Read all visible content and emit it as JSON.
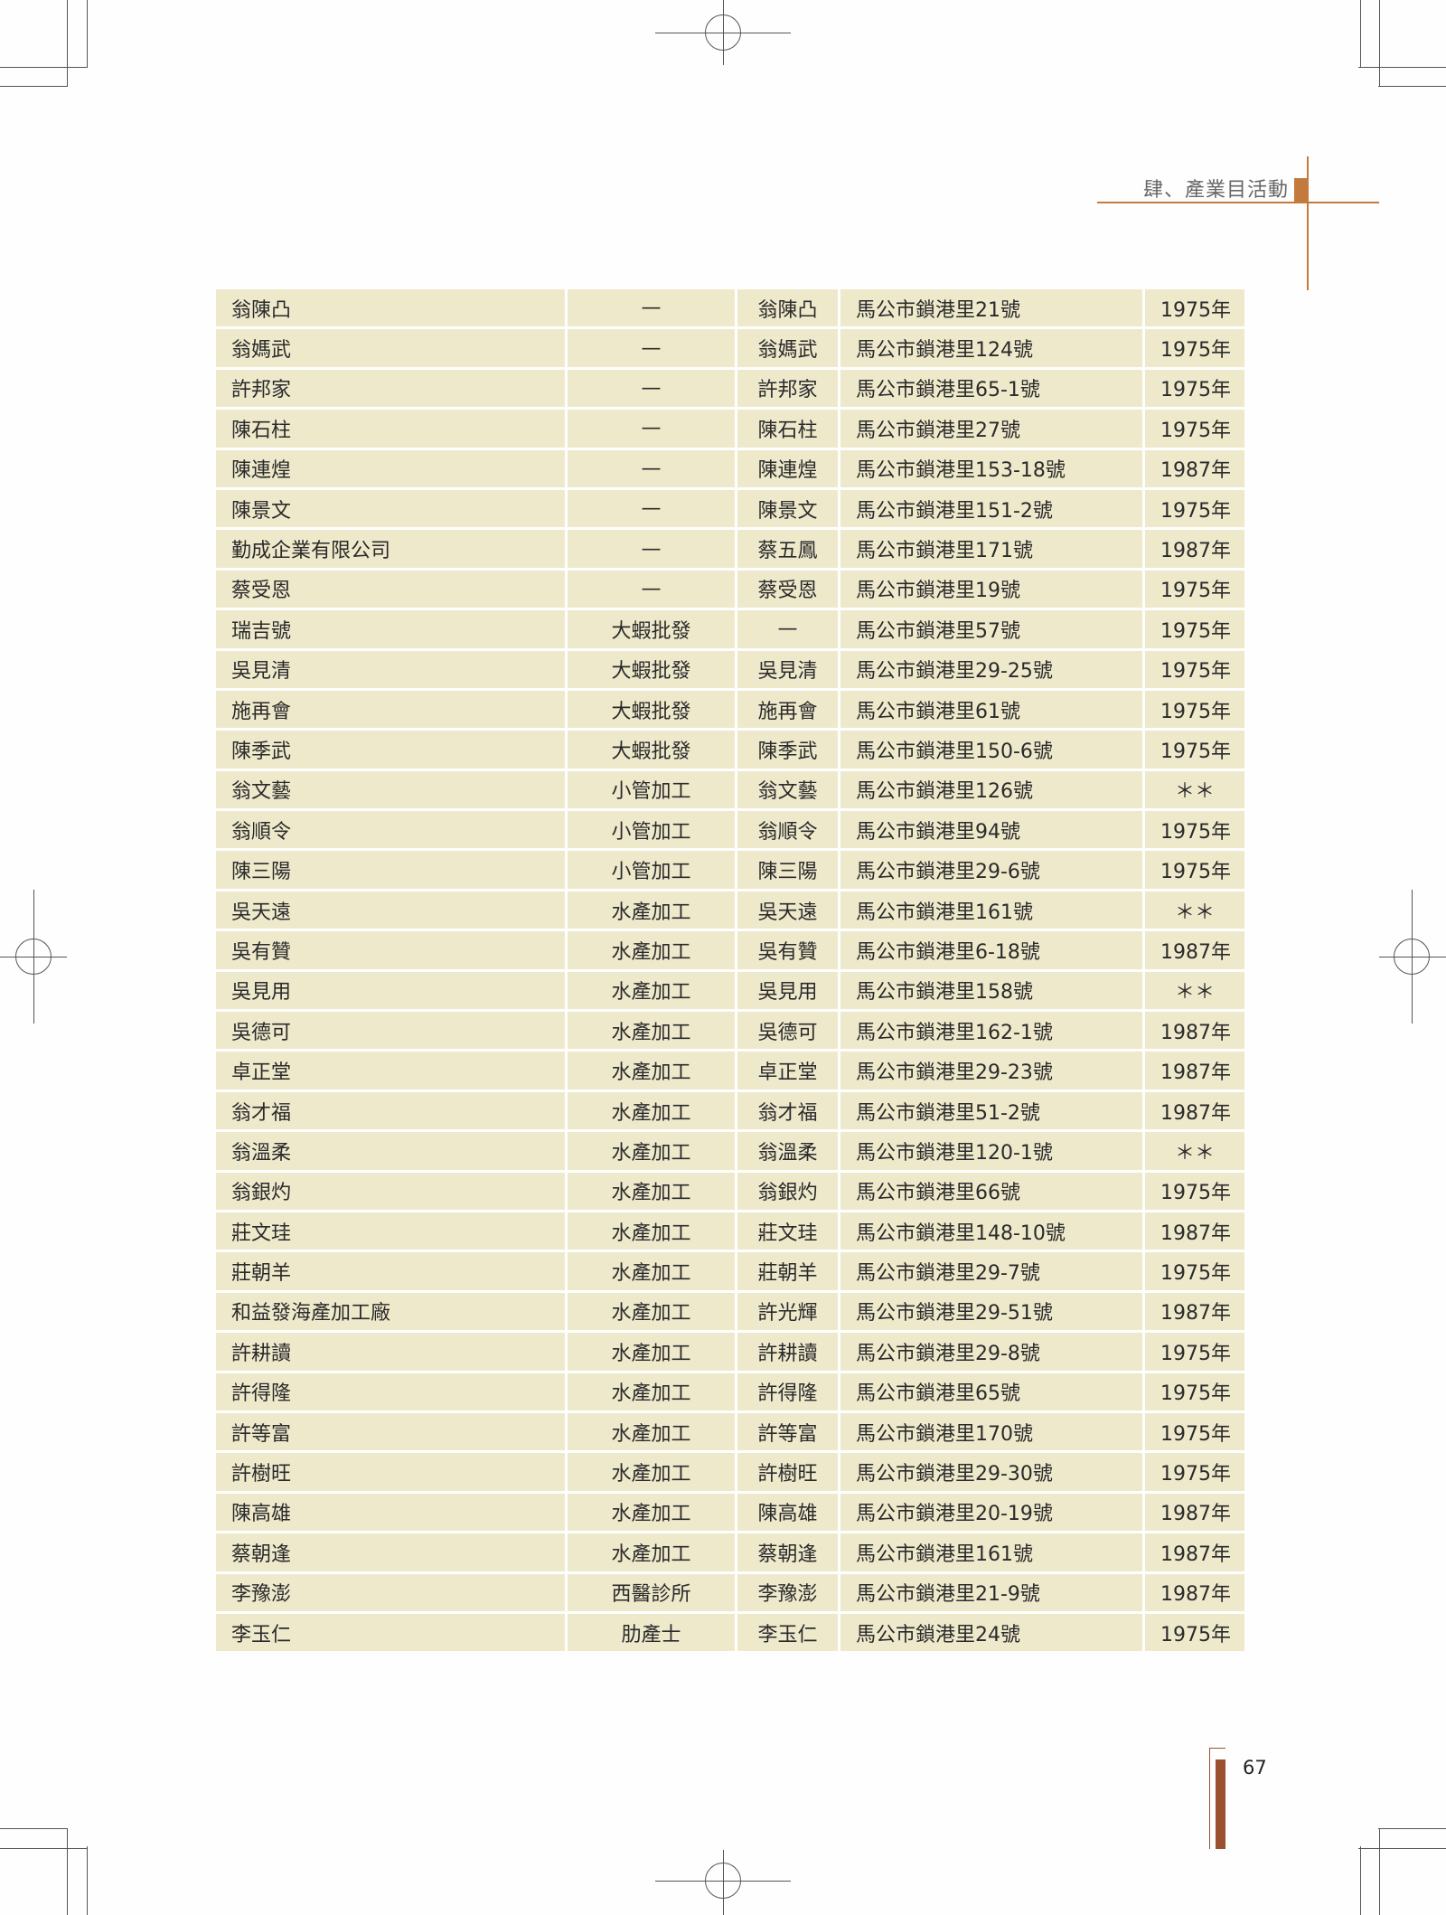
{
  "header": {
    "section_title": "肆、產業目活動"
  },
  "page_number": "67",
  "colors": {
    "cell_background": "#efe9cc",
    "accent": "#c47a3c",
    "page_bar": "#9b5030"
  },
  "rows": [
    [
      "翁陳凸",
      "—",
      "翁陳凸",
      "馬公市鎖港里21號",
      "1975年"
    ],
    [
      "翁媽武",
      "—",
      "翁媽武",
      "馬公市鎖港里124號",
      "1975年"
    ],
    [
      "許邦家",
      "—",
      "許邦家",
      "馬公市鎖港里65-1號",
      "1975年"
    ],
    [
      "陳石柱",
      "—",
      "陳石柱",
      "馬公市鎖港里27號",
      "1975年"
    ],
    [
      "陳連煌",
      "—",
      "陳連煌",
      "馬公市鎖港里153-18號",
      "1987年"
    ],
    [
      "陳景文",
      "—",
      "陳景文",
      "馬公市鎖港里151-2號",
      "1975年"
    ],
    [
      "勤成企業有限公司",
      "—",
      "蔡五鳳",
      "馬公市鎖港里171號",
      "1987年"
    ],
    [
      "蔡受恩",
      "—",
      "蔡受恩",
      "馬公市鎖港里19號",
      "1975年"
    ],
    [
      "瑞吉號",
      "大蝦批發",
      "—",
      "馬公市鎖港里57號",
      "1975年"
    ],
    [
      "吳見清",
      "大蝦批發",
      "吳見清",
      "馬公市鎖港里29-25號",
      "1975年"
    ],
    [
      "施再會",
      "大蝦批發",
      "施再會",
      "馬公市鎖港里61號",
      "1975年"
    ],
    [
      "陳季武",
      "大蝦批發",
      "陳季武",
      "馬公市鎖港里150-6號",
      "1975年"
    ],
    [
      "翁文藝",
      "小管加工",
      "翁文藝",
      "馬公市鎖港里126號",
      "＊＊"
    ],
    [
      "翁順令",
      "小管加工",
      "翁順令",
      "馬公市鎖港里94號",
      "1975年"
    ],
    [
      "陳三陽",
      "小管加工",
      "陳三陽",
      "馬公市鎖港里29-6號",
      "1975年"
    ],
    [
      "吳天遠",
      "水產加工",
      "吳天遠",
      "馬公市鎖港里161號",
      "＊＊"
    ],
    [
      "吳有贊",
      "水產加工",
      "吳有贊",
      "馬公市鎖港里6-18號",
      "1987年"
    ],
    [
      "吳見用",
      "水產加工",
      "吳見用",
      "馬公市鎖港里158號",
      "＊＊"
    ],
    [
      "吳德可",
      "水產加工",
      "吳德可",
      "馬公市鎖港里162-1號",
      "1987年"
    ],
    [
      "卓正堂",
      "水產加工",
      "卓正堂",
      "馬公市鎖港里29-23號",
      "1987年"
    ],
    [
      "翁才福",
      "水產加工",
      "翁才福",
      "馬公市鎖港里51-2號",
      "1987年"
    ],
    [
      "翁溫柔",
      "水產加工",
      "翁溫柔",
      "馬公市鎖港里120-1號",
      "＊＊"
    ],
    [
      "翁銀灼",
      "水產加工",
      "翁銀灼",
      "馬公市鎖港里66號",
      "1975年"
    ],
    [
      "莊文珪",
      "水產加工",
      "莊文珪",
      "馬公市鎖港里148-10號",
      "1987年"
    ],
    [
      "莊朝羊",
      "水產加工",
      "莊朝羊",
      "馬公市鎖港里29-7號",
      "1975年"
    ],
    [
      "和益發海產加工廠",
      "水產加工",
      "許光輝",
      "馬公市鎖港里29-51號",
      "1987年"
    ],
    [
      "許耕讀",
      "水產加工",
      "許耕讀",
      "馬公市鎖港里29-8號",
      "1975年"
    ],
    [
      "許得隆",
      "水產加工",
      "許得隆",
      "馬公市鎖港里65號",
      "1975年"
    ],
    [
      "許等富",
      "水產加工",
      "許等富",
      "馬公市鎖港里170號",
      "1975年"
    ],
    [
      "許樹旺",
      "水產加工",
      "許樹旺",
      "馬公市鎖港里29-30號",
      "1975年"
    ],
    [
      "陳高雄",
      "水產加工",
      "陳高雄",
      "馬公市鎖港里20-19號",
      "1987年"
    ],
    [
      "蔡朝逢",
      "水產加工",
      "蔡朝逢",
      "馬公市鎖港里161號",
      "1987年"
    ],
    [
      "李豫澎",
      "西醫診所",
      "李豫澎",
      "馬公市鎖港里21-9號",
      "1987年"
    ],
    [
      "李玉仁",
      "肋產士",
      "李玉仁",
      "馬公市鎖港里24號",
      "1975年"
    ]
  ]
}
